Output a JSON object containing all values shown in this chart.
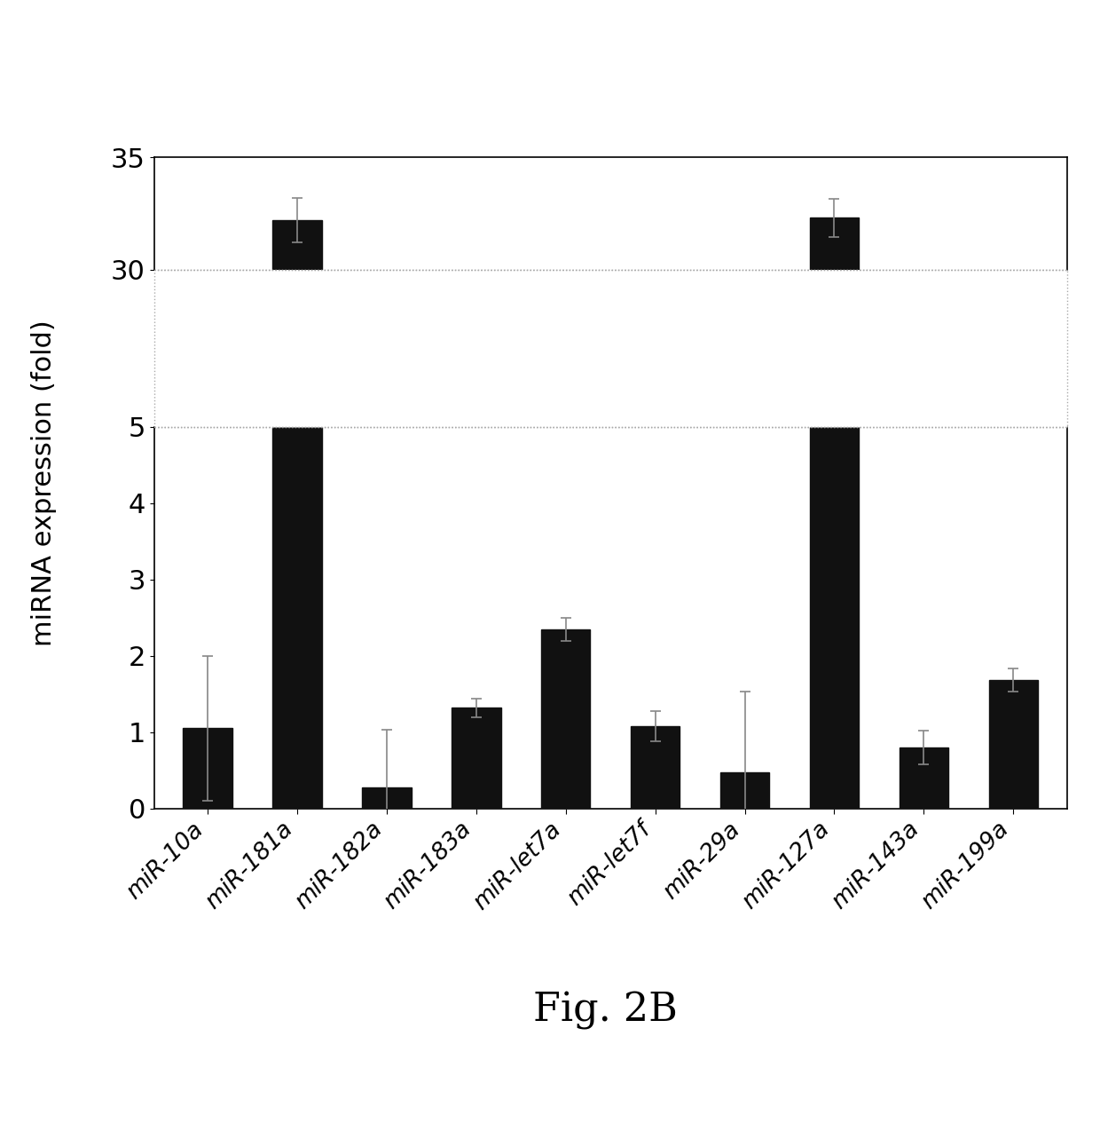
{
  "categories": [
    "miR-10a",
    "miR-181a",
    "miR-182a",
    "miR-183a",
    "miR-let7a",
    "miR-let7f",
    "miR-29a",
    "miR-127a",
    "miR-143a",
    "miR-199a"
  ],
  "values": [
    1.05,
    32.2,
    0.28,
    1.32,
    2.35,
    1.08,
    0.48,
    32.3,
    0.8,
    1.68
  ],
  "errors": [
    0.95,
    1.0,
    0.75,
    0.12,
    0.15,
    0.2,
    1.05,
    0.85,
    0.22,
    0.15
  ],
  "bar_color": "#111111",
  "ylabel": "miRNA expression (fold)",
  "title": "Fig. 2B",
  "lower_ylim": [
    0,
    5
  ],
  "upper_ylim": [
    30,
    35
  ],
  "lower_yticks": [
    0,
    1,
    2,
    3,
    4,
    5
  ],
  "upper_yticks": [
    30,
    35
  ],
  "background_color": "#ffffff",
  "gap_color": "#ffffff",
  "dotted_color": "#aaaaaa"
}
